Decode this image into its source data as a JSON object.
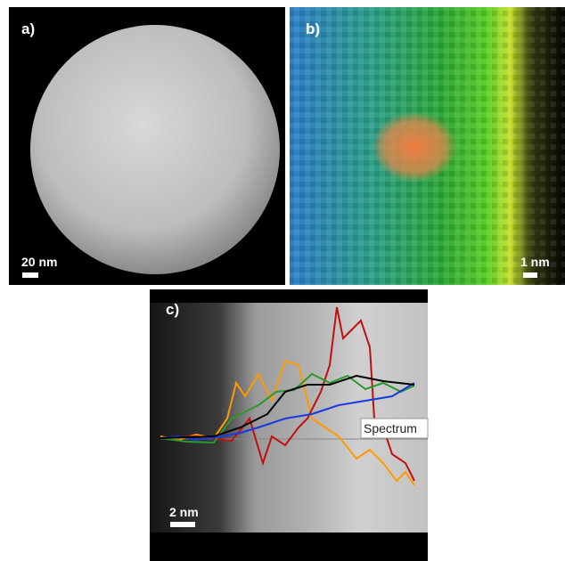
{
  "panels": [
    {
      "label": "a)",
      "scale_bar": "20 nm"
    },
    {
      "label": "b)",
      "scale_bar": "1 nm"
    },
    {
      "label": "c)",
      "scale_bar": "2 nm",
      "inset_label": "Spectrum"
    }
  ]
}
